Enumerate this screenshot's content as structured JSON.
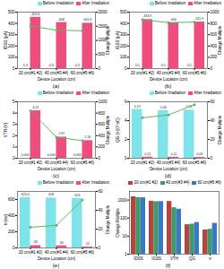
{
  "chart_data": [
    {
      "type": "bar",
      "title": "(a)",
      "xlabel": "Device Location (cm)",
      "ylabel": "IDSS (μA)",
      "y2label": "Change Multiple",
      "categories": [
        "20 cm(#1 #2)",
        "40 cm(#3 #4)",
        "60 cm(#5 #6)"
      ],
      "series": [
        {
          "name": "Before Irradiation",
          "color": "#7fe3ea",
          "values": [
            0.3,
            0.3,
            0.3
          ]
        },
        {
          "name": "After Irradiation",
          "color": "#ee4d7e",
          "values": [
            453.6,
            408,
            401.6
          ]
        },
        {
          "name": "Change Multiple",
          "type": "line",
          "axis": "y2",
          "color": "#5cb85c",
          "marker": "circle",
          "values": [
            1512,
            1360,
            1339
          ]
        }
      ],
      "ylim": [
        0,
        500
      ],
      "yticks": [
        0,
        100,
        200,
        300,
        400,
        500
      ],
      "y2lim": [
        0,
        2000
      ],
      "y2ticks": [
        0,
        500,
        1000,
        1500,
        2000
      ],
      "data_labels": true,
      "legend": "upper right"
    },
    {
      "type": "bar",
      "title": "(b)",
      "xlabel": "Device Location (cm)",
      "ylabel": "IGSS (pA)",
      "y2label": "Change Multiple",
      "categories": [
        "20 cm(#1 #2)",
        "40 cm(#3 #4)",
        "60 cm(#5 #6)"
      ],
      "series": [
        {
          "name": "Before Irradiation",
          "color": "#7fe3ea",
          "values": [
            0.5,
            0.5,
            0.5
          ]
        },
        {
          "name": "After Irradiation",
          "color": "#ee4d7e",
          "values": [
            433.9,
            406,
            411.9
          ]
        },
        {
          "name": "Change Multiple",
          "type": "line",
          "axis": "y2",
          "color": "#5cb85c",
          "marker": "circle",
          "values": [
            868,
            812,
            824
          ]
        }
      ],
      "ylim": [
        0,
        500
      ],
      "yticks": [
        0,
        100,
        200,
        300,
        400,
        500
      ],
      "y2lim": [
        0,
        1000
      ],
      "y2ticks": [
        0,
        200,
        400,
        600,
        800,
        1000
      ],
      "data_labels": true,
      "legend": "upper right"
    },
    {
      "type": "bar",
      "title": "(c)",
      "xlabel": "Device Location (cm)",
      "ylabel": "VTH (V)",
      "y2label": "Change Multiple",
      "categories": [
        "20 cm(#1 #2)",
        "40 cm(#3 #4)",
        "60 cm(#5 #6)"
      ],
      "series": [
        {
          "name": "Before Irradiation",
          "color": "#7fe3ea",
          "values": [
            0.005,
            0.005,
            0.005
          ]
        },
        {
          "name": "After Irradiation",
          "color": "#ee4d7e",
          "values": [
            4.21,
            1.87,
            1.56
          ]
        },
        {
          "name": "Change Multiple",
          "type": "line",
          "axis": "y2",
          "color": "#5cb85c",
          "marker": "circle",
          "values": [
            842,
            374,
            312
          ]
        }
      ],
      "ylim": [
        0,
        5
      ],
      "yticks": [
        0,
        1,
        2,
        3,
        4,
        5
      ],
      "y2lim": [
        0,
        1000
      ],
      "y2ticks": [
        0,
        200,
        400,
        600,
        800,
        1000
      ],
      "data_labels": true,
      "legend": "upper right"
    },
    {
      "type": "bar",
      "title": "(d)",
      "xlabel": "Device Location (cm)",
      "ylabel": "QG (×10³ nC)",
      "y2label": "Change Multiple",
      "categories": [
        "20 cm(#1 #2)",
        "40 cm(#3 #4)",
        "60 cm(#5 #6)"
      ],
      "series": [
        {
          "name": "Before Irradiation",
          "color": "#7fe3ea",
          "values": [
            5.19,
            5.06,
            5.11
          ]
        },
        {
          "name": "After Irradiation",
          "color": "#ee4d7e",
          "values": [
            0.12,
            0.11,
            0.09
          ]
        },
        {
          "name": "Change Multiple",
          "type": "line",
          "axis": "y2",
          "color": "#5cb85c",
          "marker": "circle",
          "values": [
            43,
            46,
            57
          ]
        }
      ],
      "ylim": [
        0,
        6
      ],
      "yticks": [
        0,
        2,
        4,
        6
      ],
      "y2lim": [
        0,
        60
      ],
      "y2ticks": [
        0,
        20,
        40,
        60
      ],
      "data_labels": true,
      "legend": "upper right"
    },
    {
      "type": "bar",
      "title": "(e)",
      "xlabel": "Device Location (cm)",
      "ylabel": "tr (ns)",
      "y2label": "Change Multiple",
      "categories": [
        "20 cm(#1 #2)",
        "40 cm(#3 #4)",
        "60 cm(#5 #6)"
      ],
      "series": [
        {
          "name": "Before Irradiation",
          "color": "#7fe3ea",
          "values": [
            623.4,
            618,
            613
          ]
        },
        {
          "name": "After Irradiation",
          "color": "#ee4d7e",
          "values": [
            28,
            26,
            12
          ]
        },
        {
          "name": "Change Multiple",
          "type": "line",
          "axis": "y2",
          "color": "#5cb85c",
          "marker": "circle",
          "values": [
            22,
            24,
            51
          ]
        }
      ],
      "ylim": [
        0,
        700
      ],
      "yticks": [
        0,
        200,
        400,
        600
      ],
      "y2lim": [
        0,
        60
      ],
      "y2ticks": [
        0,
        20,
        40,
        60
      ],
      "data_labels": true,
      "legend": "upper right"
    },
    {
      "type": "bar",
      "title": "(f)",
      "ylabel": "Change Multiple",
      "categories": [
        "IDSS",
        "IGSS",
        "VTH",
        "QG",
        "tr"
      ],
      "series": [
        {
          "name": "20 cm(#1 #2)",
          "color": "#b8433e",
          "values": [
            1512,
            868,
            842,
            43,
            22
          ]
        },
        {
          "name": "40 cm(#3 #4)",
          "color": "#3d9a6a",
          "values": [
            1360,
            812,
            374,
            46,
            24
          ]
        },
        {
          "name": "60 cm(#5 #6)",
          "color": "#3a78c2",
          "values": [
            1339,
            824,
            312,
            57,
            51
          ]
        }
      ],
      "log": "y",
      "ylim": [
        1,
        3000
      ],
      "yticks": [
        1,
        10,
        100,
        1000
      ],
      "legend": "upper right"
    }
  ]
}
